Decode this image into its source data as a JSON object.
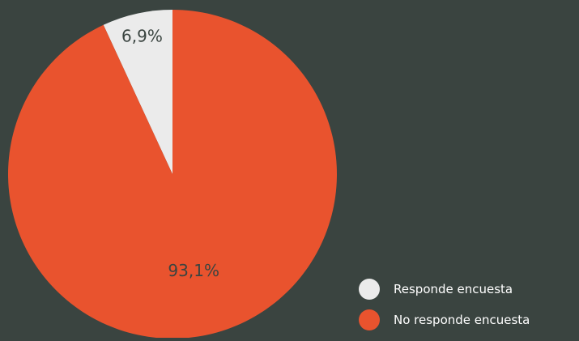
{
  "chart_data": {
    "type": "pie",
    "slices": [
      {
        "label": "Responde encuesta",
        "value": 6.9,
        "display": "6,9%",
        "color": "#ebebeb"
      },
      {
        "label": "No responde encuesta",
        "value": 93.1,
        "display": "93,1%",
        "color": "#e9532e"
      }
    ],
    "legend": {
      "position": "bottom-right",
      "items": [
        "Responde encuesta",
        "No responde encuesta"
      ]
    }
  },
  "colors": {
    "background": "#3a4440",
    "label_on_light": "#3a4440",
    "label_on_dark": "#3a4440",
    "legend_text": "#ffffff"
  }
}
